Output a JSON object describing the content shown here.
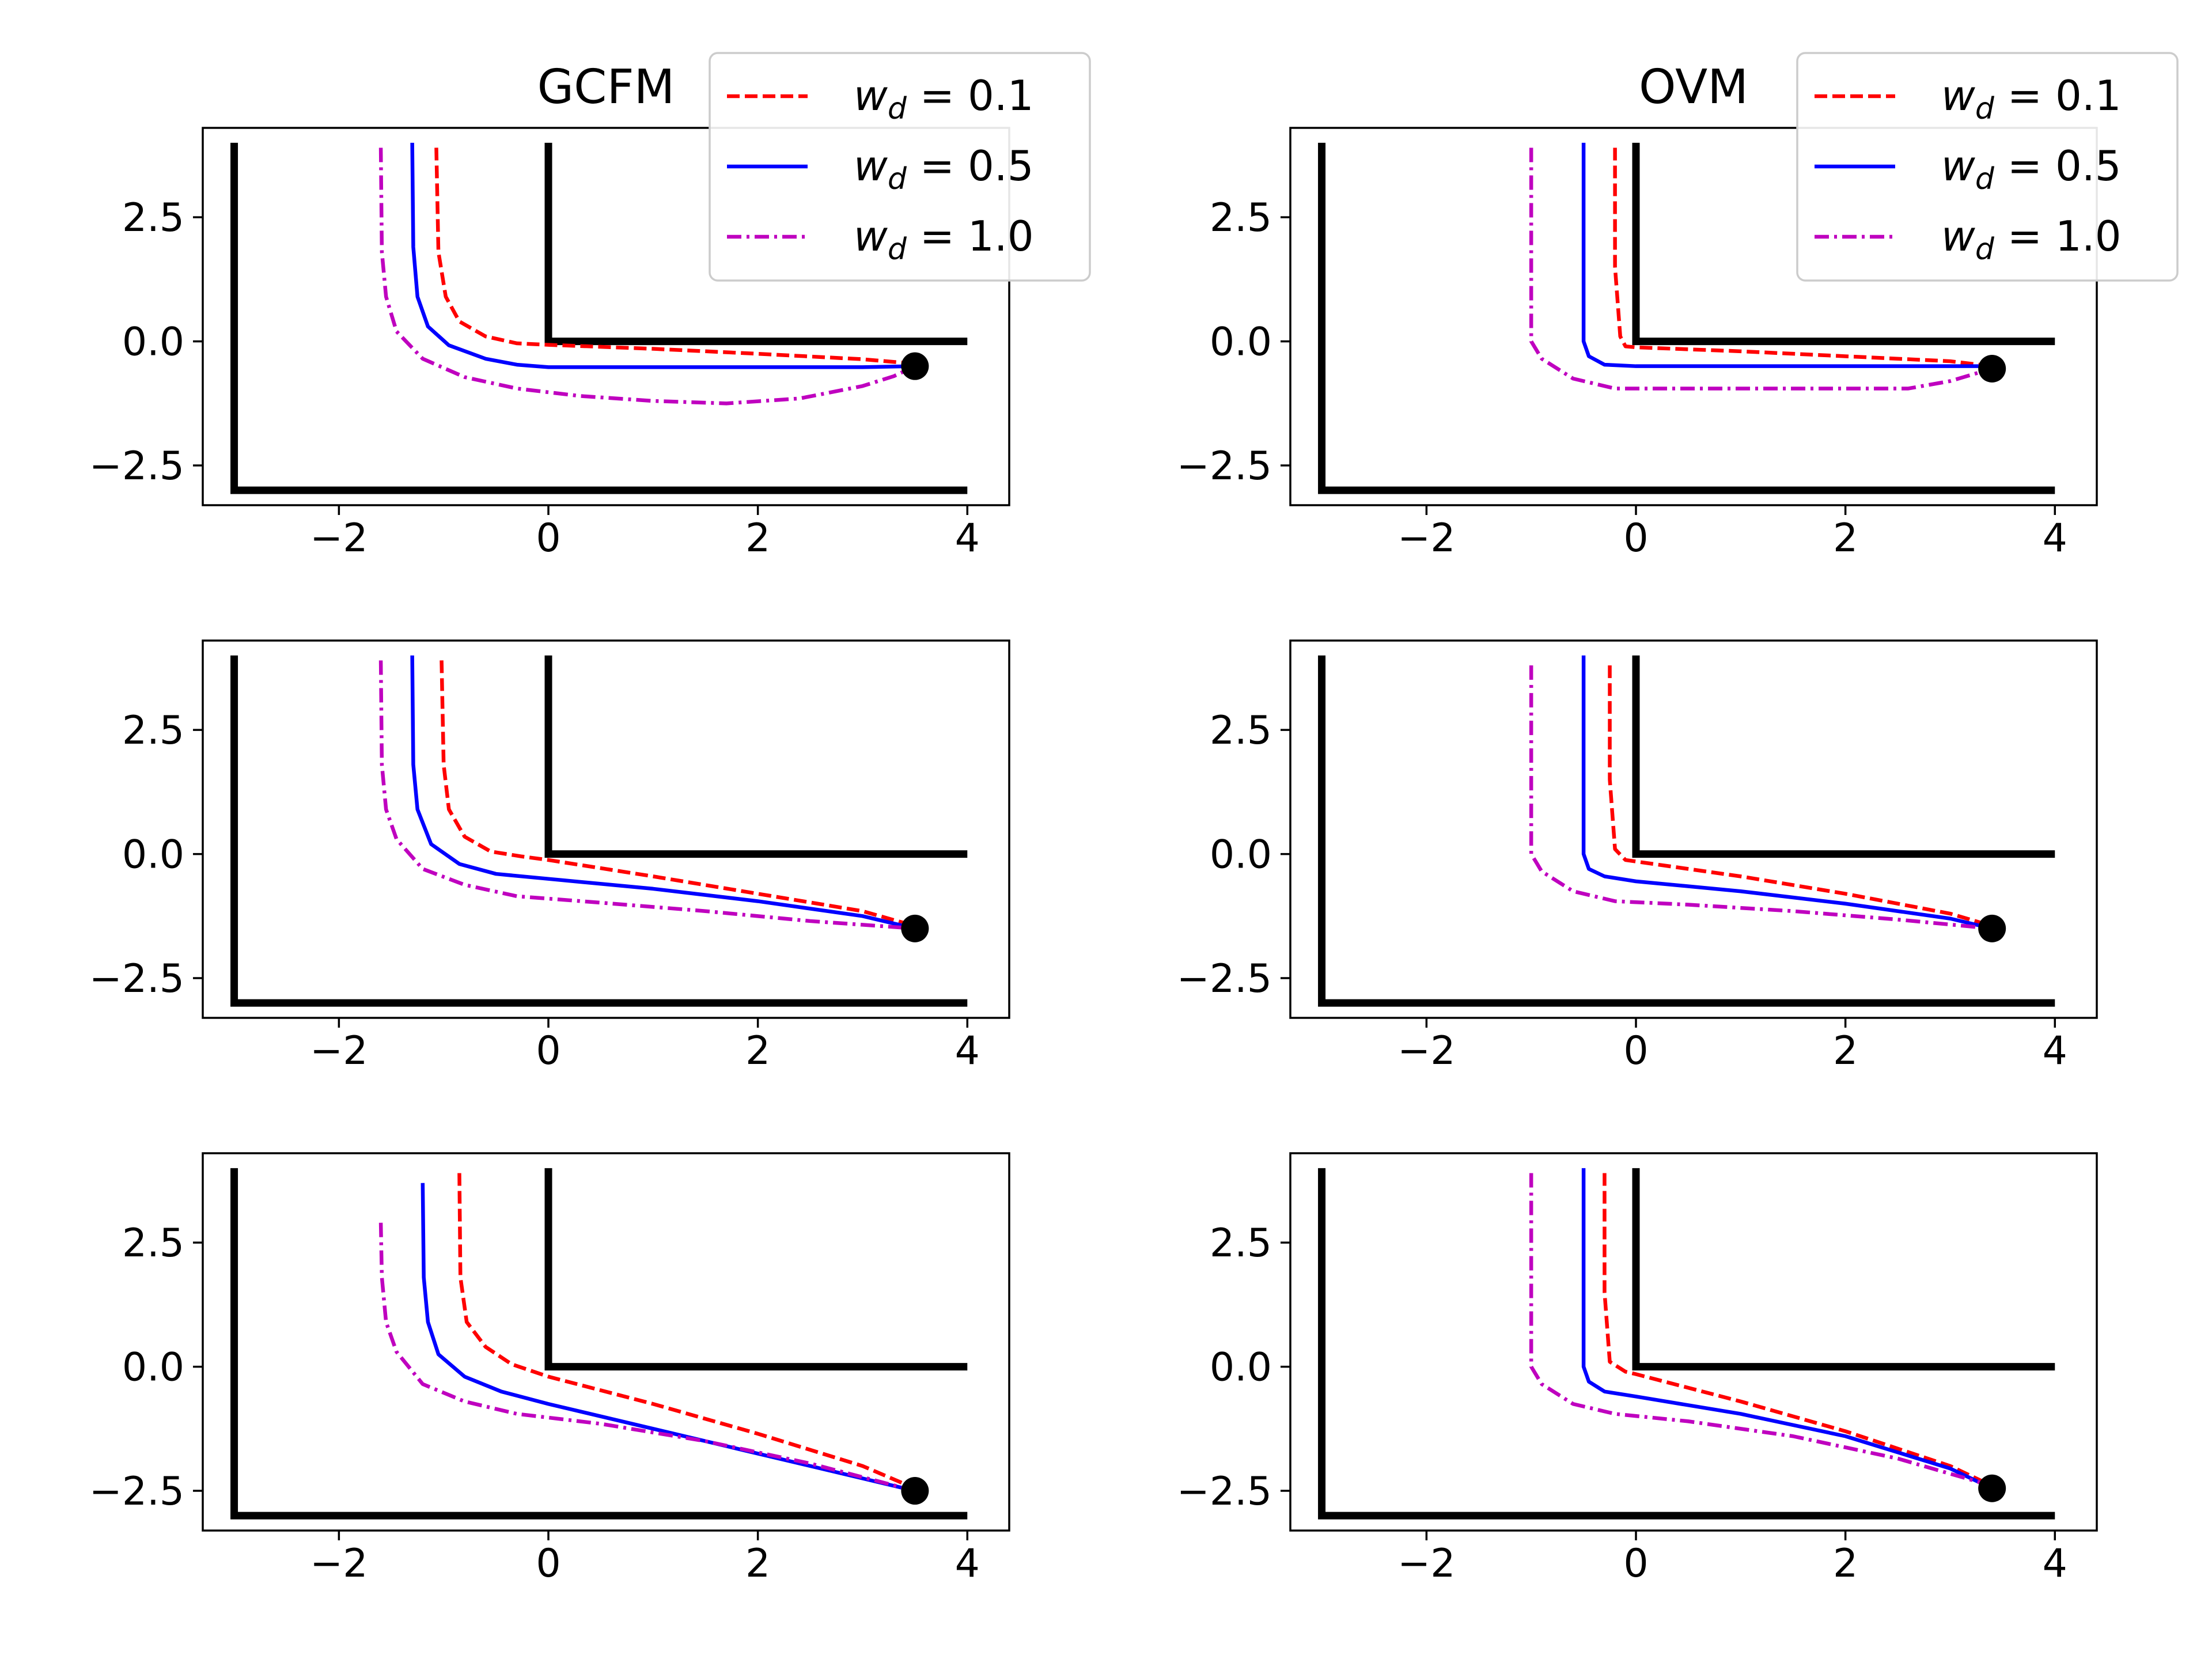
{
  "figure": {
    "colors": {
      "red": "#ff0000",
      "blue": "#0000ff",
      "magenta": "#bf00bf",
      "black": "#000000"
    }
  },
  "chart_data": [
    {
      "type": "line",
      "title": "GCFM",
      "xlim": [
        -3.3,
        4.4
      ],
      "ylim": [
        -3.3,
        4.3
      ],
      "xticks": [
        -2,
        0,
        2,
        4
      ],
      "yticks": [
        -2.5,
        0.0,
        2.5
      ],
      "xtick_labels": [
        "−2",
        "0",
        "2",
        "4"
      ],
      "ytick_labels": [
        "−2.5",
        "0.0",
        "2.5"
      ],
      "legend": {
        "location": "upper right",
        "entries": [
          {
            "w": "w",
            "sub": "d",
            "rest": " = 0.1",
            "style": "dashed",
            "color": "#ff0000"
          },
          {
            "w": "w",
            "sub": "d",
            "rest": " = 0.5",
            "style": "solid",
            "color": "#0000ff"
          },
          {
            "w": "w",
            "sub": "d",
            "rest": " = 1.0",
            "style": "dashdot",
            "color": "#bf00bf"
          }
        ]
      },
      "walls": [
        [
          [
            -3,
            4
          ],
          [
            -3,
            -3
          ],
          [
            4,
            -3
          ]
        ],
        [
          [
            0,
            4
          ],
          [
            0,
            0
          ],
          [
            4,
            0
          ]
        ]
      ],
      "target": [
        3.5,
        -0.5
      ],
      "series": [
        {
          "style": "dashed",
          "color": "#ff0000",
          "x": [
            -1.07,
            -1.05,
            -0.98,
            -0.85,
            -0.6,
            -0.3,
            0,
            1,
            2,
            3,
            3.5
          ],
          "y": [
            3.9,
            1.8,
            0.9,
            0.4,
            0.1,
            -0.04,
            -0.07,
            -0.15,
            -0.25,
            -0.36,
            -0.45
          ]
        },
        {
          "style": "solid",
          "color": "#0000ff",
          "x": [
            -1.3,
            -1.29,
            -1.25,
            -1.15,
            -0.95,
            -0.6,
            -0.3,
            0,
            1,
            2,
            3,
            3.5
          ],
          "y": [
            4.0,
            1.9,
            0.9,
            0.3,
            -0.08,
            -0.35,
            -0.47,
            -0.52,
            -0.52,
            -0.52,
            -0.52,
            -0.5
          ]
        },
        {
          "style": "dashdot",
          "color": "#bf00bf",
          "x": [
            -1.6,
            -1.59,
            -1.55,
            -1.45,
            -1.2,
            -0.8,
            -0.3,
            0.3,
            1,
            1.7,
            2.4,
            3,
            3.3,
            3.5
          ],
          "y": [
            3.9,
            1.8,
            0.9,
            0.2,
            -0.35,
            -0.72,
            -0.95,
            -1.1,
            -1.2,
            -1.25,
            -1.15,
            -0.9,
            -0.7,
            -0.5
          ]
        }
      ]
    },
    {
      "type": "line",
      "title": "OVM",
      "xlim": [
        -3.3,
        4.4
      ],
      "ylim": [
        -3.3,
        4.3
      ],
      "xticks": [
        -2,
        0,
        2,
        4
      ],
      "yticks": [
        -2.5,
        0.0,
        2.5
      ],
      "xtick_labels": [
        "−2",
        "0",
        "2",
        "4"
      ],
      "ytick_labels": [
        "−2.5",
        "0.0",
        "2.5"
      ],
      "legend": {
        "location": "upper right",
        "entries": [
          {
            "w": "w",
            "sub": "d",
            "rest": " = 0.1",
            "style": "dashed",
            "color": "#ff0000"
          },
          {
            "w": "w",
            "sub": "d",
            "rest": " = 0.5",
            "style": "solid",
            "color": "#0000ff"
          },
          {
            "w": "w",
            "sub": "d",
            "rest": " = 1.0",
            "style": "dashdot",
            "color": "#bf00bf"
          }
        ]
      },
      "walls": [
        [
          [
            -3,
            4
          ],
          [
            -3,
            -3
          ],
          [
            4,
            -3
          ]
        ],
        [
          [
            0,
            4
          ],
          [
            0,
            0
          ],
          [
            4,
            0
          ]
        ]
      ],
      "target": [
        3.4,
        -0.55
      ],
      "series": [
        {
          "style": "dashed",
          "color": "#ff0000",
          "x": [
            -0.2,
            -0.2,
            -0.15,
            -0.1,
            0,
            1,
            2,
            3,
            3.4
          ],
          "y": [
            3.9,
            1.5,
            0.1,
            -0.1,
            -0.12,
            -0.2,
            -0.3,
            -0.4,
            -0.5
          ]
        },
        {
          "style": "solid",
          "color": "#0000ff",
          "x": [
            -0.5,
            -0.5,
            -0.45,
            -0.3,
            0,
            1,
            2,
            3,
            3.4
          ],
          "y": [
            4.0,
            0.0,
            -0.3,
            -0.47,
            -0.5,
            -0.5,
            -0.5,
            -0.5,
            -0.5
          ]
        },
        {
          "style": "dashdot",
          "color": "#bf00bf",
          "x": [
            -1.0,
            -1.0,
            -0.9,
            -0.6,
            -0.2,
            1,
            2,
            2.6,
            3,
            3.4
          ],
          "y": [
            3.9,
            0.0,
            -0.35,
            -0.75,
            -0.95,
            -0.95,
            -0.95,
            -0.95,
            -0.8,
            -0.55
          ]
        }
      ]
    },
    {
      "type": "line",
      "title": "",
      "xlim": [
        -3.3,
        4.4
      ],
      "ylim": [
        -3.3,
        4.3
      ],
      "xticks": [
        -2,
        0,
        2,
        4
      ],
      "yticks": [
        -2.5,
        0.0,
        2.5
      ],
      "xtick_labels": [
        "−2",
        "0",
        "2",
        "4"
      ],
      "ytick_labels": [
        "−2.5",
        "0.0",
        "2.5"
      ],
      "walls": [
        [
          [
            -3,
            4
          ],
          [
            -3,
            -3
          ],
          [
            4,
            -3
          ]
        ],
        [
          [
            0,
            4
          ],
          [
            0,
            0
          ],
          [
            4,
            0
          ]
        ]
      ],
      "target": [
        3.5,
        -1.5
      ],
      "series": [
        {
          "style": "dashed",
          "color": "#ff0000",
          "x": [
            -1.02,
            -1.0,
            -0.95,
            -0.8,
            -0.55,
            -0.25,
            0,
            1,
            2,
            3,
            3.5
          ],
          "y": [
            3.9,
            1.8,
            0.9,
            0.35,
            0.05,
            -0.05,
            -0.12,
            -0.45,
            -0.8,
            -1.15,
            -1.45
          ]
        },
        {
          "style": "solid",
          "color": "#0000ff",
          "x": [
            -1.3,
            -1.29,
            -1.25,
            -1.12,
            -0.85,
            -0.5,
            0,
            1,
            2,
            3,
            3.5
          ],
          "y": [
            4.0,
            1.8,
            0.9,
            0.2,
            -0.2,
            -0.4,
            -0.5,
            -0.7,
            -0.95,
            -1.25,
            -1.5
          ]
        },
        {
          "style": "dashdot",
          "color": "#bf00bf",
          "x": [
            -1.6,
            -1.59,
            -1.55,
            -1.45,
            -1.2,
            -0.8,
            -0.3,
            0.5,
            1.5,
            2.5,
            3.5
          ],
          "y": [
            3.9,
            1.8,
            0.9,
            0.3,
            -0.3,
            -0.62,
            -0.85,
            -0.98,
            -1.15,
            -1.35,
            -1.5
          ]
        }
      ]
    },
    {
      "type": "line",
      "title": "",
      "xlim": [
        -3.3,
        4.4
      ],
      "ylim": [
        -3.3,
        4.3
      ],
      "xticks": [
        -2,
        0,
        2,
        4
      ],
      "yticks": [
        -2.5,
        0.0,
        2.5
      ],
      "xtick_labels": [
        "−2",
        "0",
        "2",
        "4"
      ],
      "ytick_labels": [
        "−2.5",
        "0.0",
        "2.5"
      ],
      "walls": [
        [
          [
            -3,
            4
          ],
          [
            -3,
            -3
          ],
          [
            4,
            -3
          ]
        ],
        [
          [
            0,
            4
          ],
          [
            0,
            0
          ],
          [
            4,
            0
          ]
        ]
      ],
      "target": [
        3.4,
        -1.5
      ],
      "series": [
        {
          "style": "dashed",
          "color": "#ff0000",
          "x": [
            -0.25,
            -0.25,
            -0.2,
            -0.1,
            0,
            1,
            2,
            3,
            3.4
          ],
          "y": [
            3.8,
            1.5,
            0.1,
            -0.12,
            -0.15,
            -0.45,
            -0.8,
            -1.2,
            -1.45
          ]
        },
        {
          "style": "solid",
          "color": "#0000ff",
          "x": [
            -0.5,
            -0.5,
            -0.45,
            -0.3,
            0,
            1,
            2,
            3,
            3.4
          ],
          "y": [
            4.0,
            0.0,
            -0.3,
            -0.45,
            -0.55,
            -0.75,
            -1.0,
            -1.3,
            -1.5
          ]
        },
        {
          "style": "dashdot",
          "color": "#bf00bf",
          "x": [
            -1.0,
            -1.0,
            -0.9,
            -0.6,
            -0.2,
            0.5,
            1.5,
            2.5,
            3.4
          ],
          "y": [
            3.8,
            0.0,
            -0.35,
            -0.75,
            -0.95,
            -1.02,
            -1.15,
            -1.32,
            -1.5
          ]
        }
      ]
    },
    {
      "type": "line",
      "title": "",
      "xlim": [
        -3.3,
        4.4
      ],
      "ylim": [
        -3.3,
        4.3
      ],
      "xticks": [
        -2,
        0,
        2,
        4
      ],
      "yticks": [
        -2.5,
        0.0,
        2.5
      ],
      "xtick_labels": [
        "−2",
        "0",
        "2",
        "4"
      ],
      "ytick_labels": [
        "−2.5",
        "0.0",
        "2.5"
      ],
      "walls": [
        [
          [
            -3,
            4
          ],
          [
            -3,
            -3
          ],
          [
            4,
            -3
          ]
        ],
        [
          [
            0,
            4
          ],
          [
            0,
            0
          ],
          [
            4,
            0
          ]
        ]
      ],
      "target": [
        3.5,
        -2.5
      ],
      "series": [
        {
          "style": "dashed",
          "color": "#ff0000",
          "x": [
            -0.85,
            -0.84,
            -0.78,
            -0.6,
            -0.35,
            0,
            1,
            2,
            3,
            3.5
          ],
          "y": [
            3.9,
            1.8,
            0.9,
            0.4,
            0.05,
            -0.2,
            -0.75,
            -1.35,
            -2.0,
            -2.45
          ]
        },
        {
          "style": "solid",
          "color": "#0000ff",
          "x": [
            -1.2,
            -1.19,
            -1.15,
            -1.05,
            -0.8,
            -0.45,
            0,
            1,
            2,
            3,
            3.5
          ],
          "y": [
            3.7,
            1.8,
            0.9,
            0.25,
            -0.2,
            -0.5,
            -0.75,
            -1.25,
            -1.75,
            -2.25,
            -2.5
          ]
        },
        {
          "style": "dashdot",
          "color": "#bf00bf",
          "x": [
            -1.6,
            -1.59,
            -1.55,
            -1.45,
            -1.2,
            -0.8,
            -0.3,
            0.5,
            1.5,
            2.5,
            3.5
          ],
          "y": [
            2.9,
            1.8,
            0.9,
            0.3,
            -0.35,
            -0.7,
            -0.95,
            -1.15,
            -1.5,
            -1.95,
            -2.5
          ]
        }
      ]
    },
    {
      "type": "line",
      "title": "",
      "xlim": [
        -3.3,
        4.4
      ],
      "ylim": [
        -3.3,
        4.3
      ],
      "xticks": [
        -2,
        0,
        2,
        4
      ],
      "yticks": [
        -2.5,
        0.0,
        2.5
      ],
      "xtick_labels": [
        "−2",
        "0",
        "2",
        "4"
      ],
      "ytick_labels": [
        "−2.5",
        "0.0",
        "2.5"
      ],
      "walls": [
        [
          [
            -3,
            4
          ],
          [
            -3,
            -3
          ],
          [
            4,
            -3
          ]
        ],
        [
          [
            0,
            4
          ],
          [
            0,
            0
          ],
          [
            4,
            0
          ]
        ]
      ],
      "target": [
        3.4,
        -2.45
      ],
      "series": [
        {
          "style": "dashed",
          "color": "#ff0000",
          "x": [
            -0.3,
            -0.3,
            -0.25,
            -0.1,
            0,
            1,
            2,
            3,
            3.4
          ],
          "y": [
            3.9,
            1.5,
            0.1,
            -0.1,
            -0.15,
            -0.7,
            -1.3,
            -2.0,
            -2.4
          ]
        },
        {
          "style": "solid",
          "color": "#0000ff",
          "x": [
            -0.5,
            -0.5,
            -0.45,
            -0.3,
            0,
            1,
            2,
            3,
            3.4
          ],
          "y": [
            4.0,
            0.0,
            -0.3,
            -0.5,
            -0.6,
            -0.95,
            -1.4,
            -2.05,
            -2.45
          ]
        },
        {
          "style": "dashdot",
          "color": "#bf00bf",
          "x": [
            -1.0,
            -1.0,
            -0.9,
            -0.6,
            -0.2,
            0.5,
            1.5,
            2.5,
            3.4
          ],
          "y": [
            3.9,
            0.0,
            -0.35,
            -0.75,
            -0.95,
            -1.1,
            -1.4,
            -1.85,
            -2.4
          ]
        }
      ]
    }
  ]
}
